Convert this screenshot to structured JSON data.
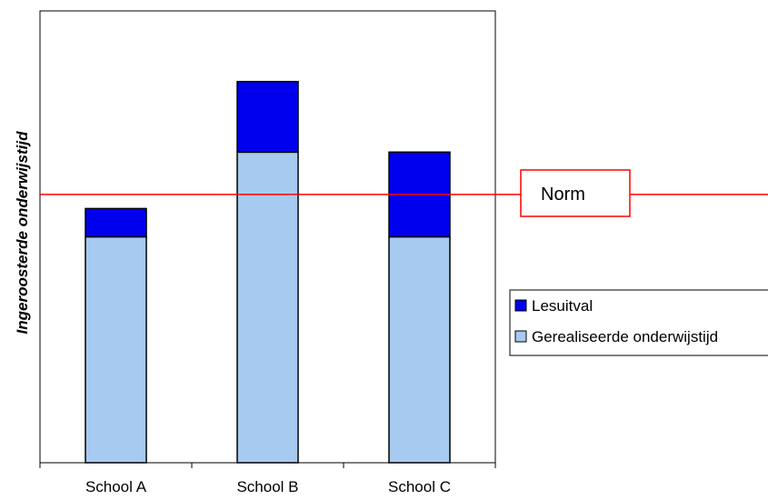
{
  "chart_data": {
    "type": "bar",
    "stacked": true,
    "categories": [
      "School A",
      "School B",
      "School C"
    ],
    "series": [
      {
        "name": "Gerealiseerde onderwijstijd",
        "values": [
          8,
          11,
          8
        ],
        "color": "#a6caf0"
      },
      {
        "name": "Lesuitval",
        "values": [
          1,
          2.5,
          3
        ],
        "color": "#0000ee"
      }
    ],
    "title": "",
    "xlabel": "",
    "ylabel": "Ingeroosterde onderwijstijd",
    "ylim": [
      0,
      16
    ],
    "y_ticks_shown": false,
    "grid": false,
    "legend": "right",
    "reference_line": {
      "label": "Norm",
      "value": 9.5,
      "color": "#ff0000"
    }
  }
}
